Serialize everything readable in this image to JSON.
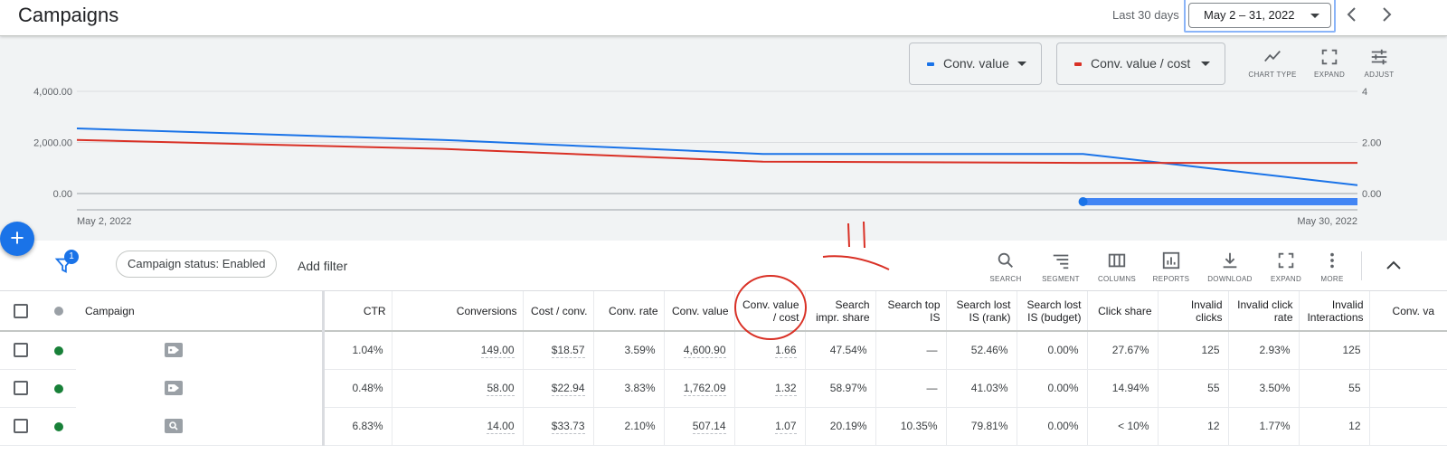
{
  "header": {
    "title": "Campaigns",
    "range_label": "Last 30 days",
    "date_range": "May 2 – 31, 2022"
  },
  "chart_toolbar": {
    "metric1": {
      "label": "Conv. value",
      "color": "#1a73e8"
    },
    "metric2": {
      "label": "Conv. value / cost",
      "color": "#d93025"
    },
    "chart_type": "CHART TYPE",
    "expand": "EXPAND",
    "adjust": "ADJUST"
  },
  "chart_data": {
    "type": "line",
    "x": [
      "May 2, 2022",
      "May 10, 2022",
      "May 17, 2022",
      "May 24, 2022",
      "May 30, 2022"
    ],
    "x_tick_labels": [
      "May 2, 2022",
      "May 30, 2022"
    ],
    "left_axis": {
      "ticks": [
        "4,000.00",
        "2,000.00",
        "0.00"
      ],
      "ylim": [
        0,
        4000
      ]
    },
    "right_axis": {
      "ticks": [
        "4",
        "2.00",
        "0.00"
      ],
      "ylim": [
        0,
        4
      ]
    },
    "series": [
      {
        "name": "Conv. value",
        "axis": "left",
        "color": "#1a73e8",
        "values": [
          2550,
          2100,
          1550,
          1550,
          330
        ]
      },
      {
        "name": "Conv. value / cost",
        "axis": "right",
        "color": "#d93025",
        "values": [
          2.1,
          1.75,
          1.25,
          1.2,
          1.2
        ]
      }
    ],
    "range_slider": {
      "start": "May 24, 2022",
      "end": "May 30, 2022"
    },
    "grid": true
  },
  "filter_bar": {
    "filter_count": "1",
    "chip_label": "Campaign status: Enabled",
    "add_filter": "Add filter",
    "tools": [
      "SEARCH",
      "SEGMENT",
      "COLUMNS",
      "REPORTS",
      "DOWNLOAD",
      "EXPAND",
      "MORE"
    ]
  },
  "table": {
    "campaign_header": "Campaign",
    "columns": [
      "CTR",
      "Conversions",
      "Cost / conv.",
      "Conv. rate",
      "Conv. value",
      "Conv. value / cost",
      "Search impr. share",
      "Search top IS",
      "Search lost IS (rank)",
      "Search lost IS (budget)",
      "Click share",
      "Invalid clicks",
      "Invalid click rate",
      "Invalid Interactions",
      "Conv. va"
    ],
    "rows": [
      {
        "status_color": "#188038",
        "type_icon": "tag-icon",
        "values": [
          "1.04%",
          "149.00",
          "$18.57",
          "3.59%",
          "4,600.90",
          "1.66",
          "47.54%",
          "—",
          "52.46%",
          "0.00%",
          "27.67%",
          "125",
          "2.93%",
          "125",
          ""
        ]
      },
      {
        "status_color": "#188038",
        "type_icon": "tag-icon",
        "values": [
          "0.48%",
          "58.00",
          "$22.94",
          "3.83%",
          "1,762.09",
          "1.32",
          "58.97%",
          "—",
          "41.03%",
          "0.00%",
          "14.94%",
          "55",
          "3.50%",
          "55",
          ""
        ]
      },
      {
        "status_color": "#188038",
        "type_icon": "search-icon",
        "values": [
          "6.83%",
          "14.00",
          "$33.73",
          "2.10%",
          "507.14",
          "1.07",
          "20.19%",
          "10.35%",
          "79.81%",
          "0.00%",
          "< 10%",
          "12",
          "1.77%",
          "12",
          ""
        ]
      }
    ]
  },
  "annotations": {
    "color": "#d93025"
  }
}
